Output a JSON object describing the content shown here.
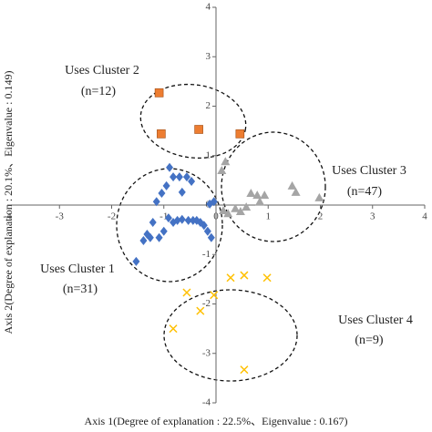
{
  "chart_data": {
    "type": "scatter",
    "x_label": "Axis 1(Degree of explanation : 22.5%、Eigenvalue : 0.167)",
    "y_label": "Axis 2(Degree of explanation : 20.1%、Eigenvalue : 0.149)",
    "xlim": [
      -4,
      4
    ],
    "ylim": [
      -4,
      4
    ],
    "xticks": [
      -4,
      -3,
      -2,
      -1,
      0,
      1,
      2,
      3,
      4
    ],
    "yticks": [
      -4,
      -3,
      -2,
      -1,
      0,
      1,
      2,
      3,
      4
    ],
    "series": [
      {
        "name": "Uses Cluster 1",
        "count_label": "(n=31)",
        "color": "#4472c4",
        "marker": "diamond",
        "x": [
          -0.89,
          -0.82,
          -0.95,
          -1.04,
          -1.14,
          -0.7,
          -0.56,
          -0.65,
          -0.47,
          -0.91,
          -0.82,
          -0.74,
          -0.65,
          -0.53,
          -0.44,
          -0.37,
          -0.3,
          -0.23,
          -0.16,
          -0.09,
          -1.0,
          -1.09,
          -1.26,
          -1.39,
          -1.32,
          -1.53,
          -1.21,
          -0.04,
          -0.12
        ],
        "values": [
          0.76,
          0.57,
          0.39,
          0.24,
          0.07,
          0.57,
          0.57,
          0.26,
          0.48,
          -0.26,
          -0.35,
          -0.31,
          -0.29,
          -0.31,
          -0.31,
          -0.31,
          -0.35,
          -0.41,
          -0.53,
          -0.66,
          -0.53,
          -0.66,
          -0.66,
          -0.72,
          -0.59,
          -1.14,
          -0.35,
          0.07,
          0.02
        ]
      },
      {
        "name": "Uses Cluster 2",
        "count_label": "(n=12)",
        "color": "#ed7d31",
        "marker": "square",
        "x": [
          -1.09,
          -1.05,
          -0.33,
          0.46
        ],
        "values": [
          2.27,
          1.44,
          1.53,
          1.44
        ]
      },
      {
        "name": "Uses Cluster 3",
        "count_label": "(n=47)",
        "color": "#a5a5a5",
        "marker": "triangle",
        "x": [
          0.18,
          0.11,
          0.37,
          0.47,
          0.58,
          0.67,
          0.79,
          0.84,
          0.93,
          1.46,
          1.53,
          1.98,
          0.23,
          0.14
        ],
        "values": [
          0.88,
          0.7,
          -0.07,
          -0.13,
          -0.04,
          0.24,
          0.2,
          0.07,
          0.2,
          0.39,
          0.26,
          0.15,
          -0.17,
          -0.11
        ]
      },
      {
        "name": "Uses Cluster 4",
        "count_label": "(n=9)",
        "color": "#ffc000",
        "marker": "x",
        "x": [
          -0.56,
          -0.82,
          -0.3,
          -0.04,
          0.28,
          0.54,
          0.98,
          0.54
        ],
        "values": [
          -1.77,
          -2.5,
          -2.14,
          -1.82,
          -1.47,
          -1.42,
          -1.47,
          -3.33
        ]
      }
    ]
  }
}
